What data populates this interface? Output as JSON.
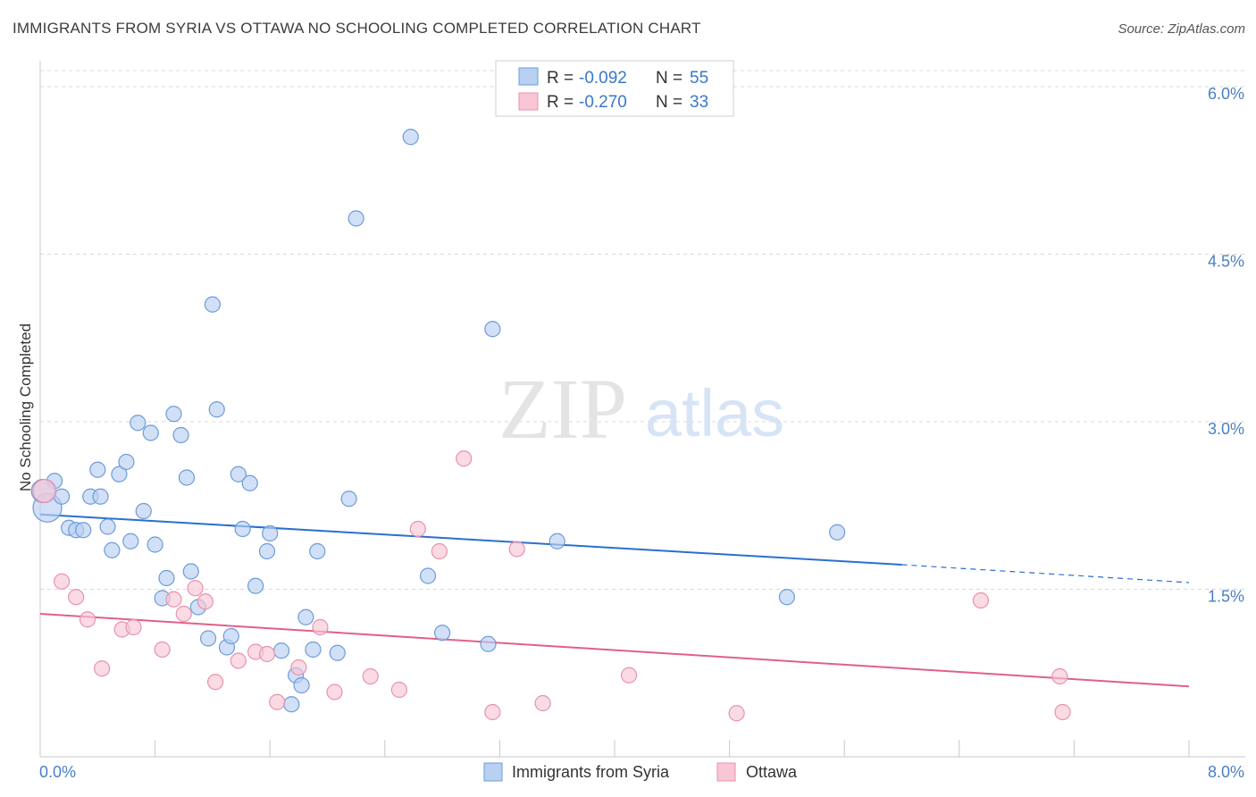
{
  "title": "IMMIGRANTS FROM SYRIA VS OTTAWA NO SCHOOLING COMPLETED CORRELATION CHART",
  "source": "Source: ZipAtlas.com",
  "watermark": {
    "zip": "ZIP",
    "atlas": "atlas"
  },
  "colors": {
    "syria_fill": "#b8d0f2",
    "syria_stroke": "#6b9bd8",
    "syria_line": "#2a6fd0",
    "ottawa_fill": "#f8c6d4",
    "ottawa_stroke": "#e891ad",
    "ottawa_line": "#e0608a",
    "grid": "#d8d8d8",
    "tick_label": "#4a7fc4"
  },
  "legend": {
    "rows": [
      {
        "r_label": "R = ",
        "r_value": "-0.092",
        "n_label": "N = ",
        "n_value": "55"
      },
      {
        "r_label": "R = ",
        "r_value": "-0.270",
        "n_label": "N = ",
        "n_value": "33"
      }
    ]
  },
  "chart_data": {
    "type": "scatter",
    "title": "IMMIGRANTS FROM SYRIA VS OTTAWA NO SCHOOLING COMPLETED CORRELATION CHART",
    "xlabel": "",
    "ylabel": "No Schooling Completed",
    "xlim": [
      0,
      8
    ],
    "ylim": [
      0,
      6.2
    ],
    "x_tick_labels": [
      "0.0%",
      "8.0%"
    ],
    "x_tick_values": [
      0,
      8
    ],
    "y_tick_labels": [
      "1.5%",
      "3.0%",
      "4.5%",
      "6.0%"
    ],
    "y_tick_values": [
      1.5,
      3.0,
      4.5,
      6.0
    ],
    "grid": true,
    "legend_position": "bottom-center",
    "series": [
      {
        "name": "Immigrants from Syria",
        "key": "syria",
        "r": -0.092,
        "n": 55,
        "trend": {
          "x0": 0.0,
          "y0": 2.17,
          "x1": 6.0,
          "y1": 1.72,
          "dashed_to_x": 8.0,
          "dashed_to_y": 1.56
        },
        "points": [
          [
            0.05,
            2.23
          ],
          [
            0.1,
            2.47
          ],
          [
            0.15,
            2.33
          ],
          [
            0.2,
            2.05
          ],
          [
            0.25,
            2.03
          ],
          [
            0.3,
            2.03
          ],
          [
            0.35,
            2.33
          ],
          [
            0.4,
            2.57
          ],
          [
            0.42,
            2.33
          ],
          [
            0.47,
            2.06
          ],
          [
            0.5,
            1.85
          ],
          [
            0.55,
            2.53
          ],
          [
            0.6,
            2.64
          ],
          [
            0.63,
            1.93
          ],
          [
            0.68,
            2.99
          ],
          [
            0.72,
            2.2
          ],
          [
            0.77,
            2.9
          ],
          [
            0.8,
            1.9
          ],
          [
            0.85,
            1.42
          ],
          [
            0.88,
            1.6
          ],
          [
            0.93,
            3.07
          ],
          [
            0.98,
            2.88
          ],
          [
            1.02,
            2.5
          ],
          [
            1.05,
            1.66
          ],
          [
            1.1,
            1.34
          ],
          [
            1.17,
            1.06
          ],
          [
            1.2,
            4.05
          ],
          [
            1.23,
            3.11
          ],
          [
            1.3,
            0.98
          ],
          [
            1.33,
            1.08
          ],
          [
            1.38,
            2.53
          ],
          [
            1.41,
            2.04
          ],
          [
            1.46,
            2.45
          ],
          [
            1.5,
            1.53
          ],
          [
            1.58,
            1.84
          ],
          [
            1.6,
            2.0
          ],
          [
            1.68,
            0.95
          ],
          [
            1.75,
            0.47
          ],
          [
            1.78,
            0.73
          ],
          [
            1.82,
            0.64
          ],
          [
            1.85,
            1.25
          ],
          [
            1.9,
            0.96
          ],
          [
            1.93,
            1.84
          ],
          [
            2.07,
            0.93
          ],
          [
            2.15,
            2.31
          ],
          [
            2.2,
            4.82
          ],
          [
            2.58,
            5.55
          ],
          [
            2.7,
            1.62
          ],
          [
            2.8,
            1.11
          ],
          [
            3.12,
            1.01
          ],
          [
            3.15,
            3.83
          ],
          [
            3.6,
            1.93
          ],
          [
            5.2,
            1.43
          ],
          [
            5.55,
            2.01
          ],
          [
            0.02,
            2.38
          ]
        ]
      },
      {
        "name": "Ottawa",
        "key": "ottawa",
        "r": -0.27,
        "n": 33,
        "trend": {
          "x0": 0.0,
          "y0": 1.28,
          "x1": 8.0,
          "y1": 0.63
        },
        "points": [
          [
            0.03,
            2.38
          ],
          [
            0.15,
            1.57
          ],
          [
            0.25,
            1.43
          ],
          [
            0.33,
            1.23
          ],
          [
            0.43,
            0.79
          ],
          [
            0.57,
            1.14
          ],
          [
            0.65,
            1.16
          ],
          [
            0.85,
            0.96
          ],
          [
            0.93,
            1.41
          ],
          [
            1.0,
            1.28
          ],
          [
            1.08,
            1.51
          ],
          [
            1.15,
            1.39
          ],
          [
            1.22,
            0.67
          ],
          [
            1.38,
            0.86
          ],
          [
            1.5,
            0.94
          ],
          [
            1.58,
            0.92
          ],
          [
            1.65,
            0.49
          ],
          [
            1.8,
            0.8
          ],
          [
            1.95,
            1.16
          ],
          [
            2.05,
            0.58
          ],
          [
            2.3,
            0.72
          ],
          [
            2.5,
            0.6
          ],
          [
            2.63,
            2.04
          ],
          [
            2.78,
            1.84
          ],
          [
            2.95,
            2.67
          ],
          [
            3.15,
            0.4
          ],
          [
            3.32,
            1.86
          ],
          [
            3.5,
            0.48
          ],
          [
            4.1,
            0.73
          ],
          [
            4.85,
            0.39
          ],
          [
            6.55,
            1.4
          ],
          [
            7.1,
            0.72
          ],
          [
            7.12,
            0.4
          ]
        ]
      }
    ]
  }
}
